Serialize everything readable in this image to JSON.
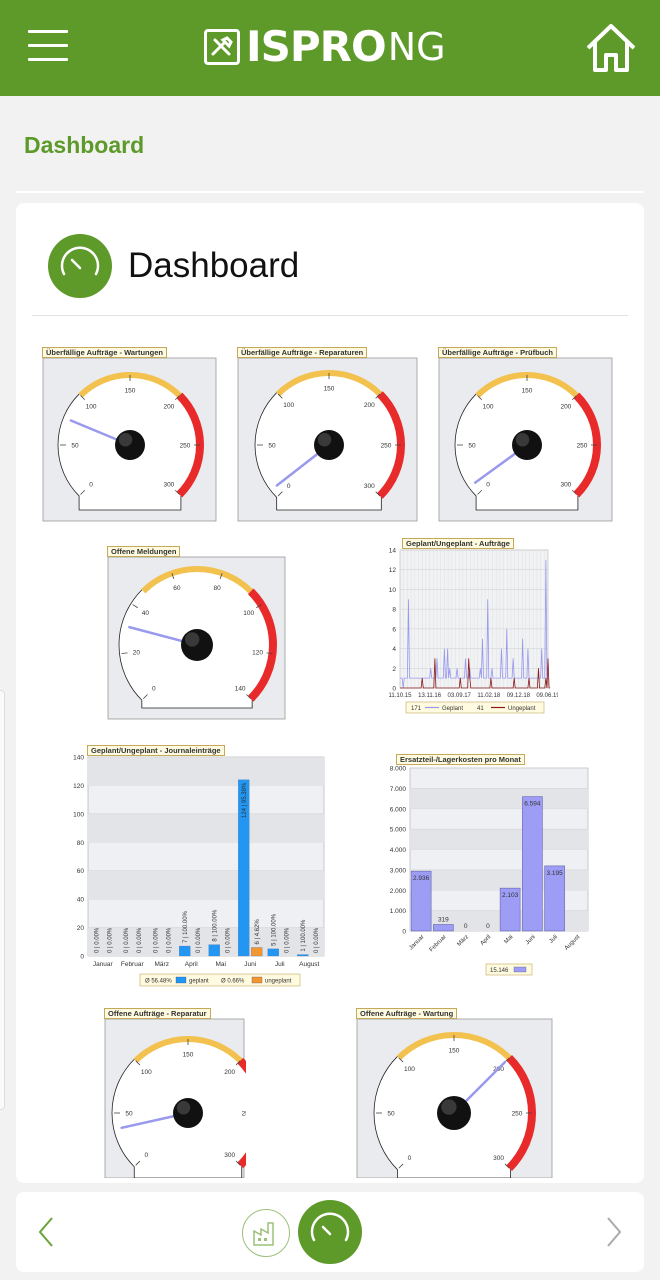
{
  "header": {
    "logo_text": "ISPRO",
    "logo_suffix": "NG",
    "menu_icon": "hamburger-menu-icon",
    "home_icon": "home-icon"
  },
  "page": {
    "heading": "Dashboard"
  },
  "card": {
    "title": "Dashboard",
    "icon": "gauge-icon"
  },
  "colors": {
    "brand": "#5e9a2a",
    "needle": "#9999ee",
    "gauge_red": "#e82a2a",
    "gauge_yellow": "#f2c14e",
    "bar_blue": "#2196f3",
    "bar_orange": "#f29630",
    "bar_lilac": "#9d9df5"
  },
  "gauges": [
    {
      "title": "Überfällige Aufträge - Wartungen",
      "min": 0,
      "max": 300,
      "labels": [
        "0",
        "50",
        "100",
        "150",
        "200",
        "250",
        "300"
      ],
      "value": 75
    },
    {
      "title": "Überfällige Aufträge - Reparaturen",
      "min": 0,
      "max": 300,
      "labels": [
        "0",
        "50",
        "100",
        "150",
        "200",
        "250",
        "300"
      ],
      "value": 8
    },
    {
      "title": "Überfällige Aufträge - Prüfbuch",
      "min": 0,
      "max": 300,
      "labels": [
        "0",
        "50",
        "100",
        "150",
        "200",
        "250",
        "300"
      ],
      "value": 10
    },
    {
      "title": "Offene Meldungen",
      "min": 0,
      "max": 140,
      "labels": [
        "0",
        "20",
        "40",
        "60",
        "80",
        "100",
        "120",
        "140"
      ],
      "value": 31
    },
    {
      "title": "Offene Aufträge - Reparatur",
      "min": 0,
      "max": 300,
      "labels": [
        "0",
        "50",
        "100",
        "150",
        "200",
        "250",
        "300"
      ],
      "value": 36
    },
    {
      "title": "Offene Aufträge - Wartung",
      "min": 0,
      "max": 300,
      "labels": [
        "0",
        "50",
        "100",
        "150",
        "200",
        "250",
        "300"
      ],
      "value": 200
    }
  ],
  "chart_data": [
    {
      "type": "line",
      "title": "Geplant/Ungeplant - Aufträge",
      "x_tick_labels": [
        "11.10.15",
        "13.11.16",
        "03.09.17",
        "11.02.18",
        "09.12.18",
        "09.06.19"
      ],
      "ylim": [
        0,
        14
      ],
      "y_ticks": [
        "0",
        "2",
        "4",
        "6",
        "8",
        "10",
        "12",
        "14"
      ],
      "series": [
        {
          "name": "Geplant",
          "legend_value": "171",
          "color": "#9999ee",
          "values": [
            1,
            1,
            1,
            0,
            1,
            1,
            1,
            1,
            9,
            1,
            1,
            1,
            1,
            1,
            1,
            1,
            1,
            1,
            1,
            1,
            1,
            1,
            1,
            1,
            1,
            1,
            1,
            1,
            1,
            2,
            1,
            1,
            1,
            1,
            1,
            3,
            1,
            1,
            1,
            1,
            1,
            1,
            4,
            1,
            1,
            4,
            1,
            2,
            1,
            1,
            1,
            1,
            1,
            1,
            2,
            1,
            1,
            1,
            1,
            1,
            1,
            1,
            3,
            1,
            1,
            1,
            2,
            1,
            1,
            1,
            1,
            1,
            1,
            1,
            1,
            1,
            2,
            1,
            5,
            1,
            1,
            1,
            1,
            9,
            1,
            1,
            1,
            2,
            1,
            1,
            1,
            1,
            1,
            1,
            1,
            1,
            4,
            1,
            1,
            1,
            1,
            6,
            1,
            1,
            1,
            1,
            1,
            3,
            1,
            1,
            1,
            1,
            1,
            1,
            1,
            1,
            5,
            1,
            1,
            1,
            1,
            4,
            1,
            1,
            1,
            1,
            1,
            1,
            1,
            1,
            1,
            1,
            1,
            1,
            4,
            1,
            1,
            1,
            13,
            1,
            1
          ]
        },
        {
          "name": "Ungeplant",
          "legend_value": "41",
          "color": "#8b1a1a",
          "values": [
            0,
            0,
            0,
            0,
            0,
            0,
            0,
            0,
            0,
            0,
            0,
            0,
            0,
            0,
            0,
            0,
            0,
            0,
            0,
            0,
            0,
            1,
            0,
            0,
            0,
            0,
            0,
            0,
            0,
            0,
            0,
            0,
            0,
            3,
            0,
            0,
            0,
            0,
            0,
            0,
            0,
            0,
            0,
            0,
            0,
            0,
            0,
            0,
            0,
            0,
            0,
            0,
            0,
            0,
            0,
            0,
            0,
            1,
            0,
            0,
            0,
            0,
            0,
            0,
            0,
            3,
            1,
            0,
            0,
            0,
            0,
            0,
            0,
            0,
            0,
            0,
            0,
            0,
            0,
            0,
            0,
            0,
            0,
            0,
            0,
            0,
            1,
            0,
            0,
            0,
            0,
            0,
            0,
            0,
            0,
            0,
            0,
            0,
            0,
            0,
            0,
            0,
            0,
            0,
            0,
            0,
            0,
            0,
            1,
            0,
            0,
            0,
            0,
            0,
            0,
            0,
            0,
            0,
            0,
            0,
            0,
            0,
            1,
            0,
            0,
            0,
            0,
            0,
            0,
            0,
            0,
            2,
            0,
            0,
            0,
            0,
            0,
            0,
            1,
            0,
            3,
            0,
            0
          ]
        }
      ]
    },
    {
      "type": "bar",
      "title": "Geplant/Ungeplant - Journaleinträge",
      "categories": [
        "Januar",
        "Februar",
        "März",
        "April",
        "Mai",
        "Juni",
        "Juli",
        "August"
      ],
      "ylim": [
        0,
        140
      ],
      "y_ticks": [
        "0",
        "20",
        "40",
        "60",
        "80",
        "100",
        "120",
        "140"
      ],
      "series": [
        {
          "name": "geplant",
          "legend_value": "Ø 56.48%",
          "color": "#2196f3",
          "values": [
            0,
            0,
            0,
            7,
            8,
            124,
            5,
            1
          ],
          "labels": [
            "0 | 0.00%",
            "0 | 0.00%",
            "0 | 0.00%",
            "7 | 100.00%",
            "8 | 100.00%",
            "124 | 95.38%",
            "5 | 100.00%",
            "1 | 100.00%"
          ]
        },
        {
          "name": "ungeplant",
          "legend_value": "Ø 0.66%",
          "color": "#f29630",
          "values": [
            0,
            0,
            0,
            0,
            0,
            6,
            0,
            0
          ],
          "labels": [
            "0 | 0.00%",
            "0 | 0.00%",
            "0 | 0.00%",
            "0 | 0.00%",
            "0 | 0.00%",
            "6 | 4.62%",
            "0 | 0.00%",
            "0 | 0.00%"
          ]
        }
      ]
    },
    {
      "type": "bar",
      "title": "Ersatzteil-/Lagerkosten pro Monat",
      "categories": [
        "Januar",
        "Februar",
        "März",
        "April",
        "Mai",
        "Juni",
        "Juli",
        "August"
      ],
      "ylim": [
        0,
        8000
      ],
      "y_ticks": [
        "0",
        "1.000",
        "2.000",
        "3.000",
        "4.000",
        "5.000",
        "6.000",
        "7.000",
        "8.000"
      ],
      "values": [
        2936,
        319,
        0,
        0,
        2103,
        6594,
        3195,
        0
      ],
      "labels": [
        "2.936",
        "319",
        "0",
        "0",
        "2.103",
        "6.594",
        "3.195",
        ""
      ],
      "legend_value": "15.146",
      "color": "#9d9df5"
    }
  ],
  "bottom_nav": {
    "prev_icon": "chevron-left-icon",
    "next_icon": "chevron-right-icon",
    "tabs": [
      {
        "icon": "factory-icon"
      },
      {
        "icon": "gauge-icon"
      }
    ]
  }
}
